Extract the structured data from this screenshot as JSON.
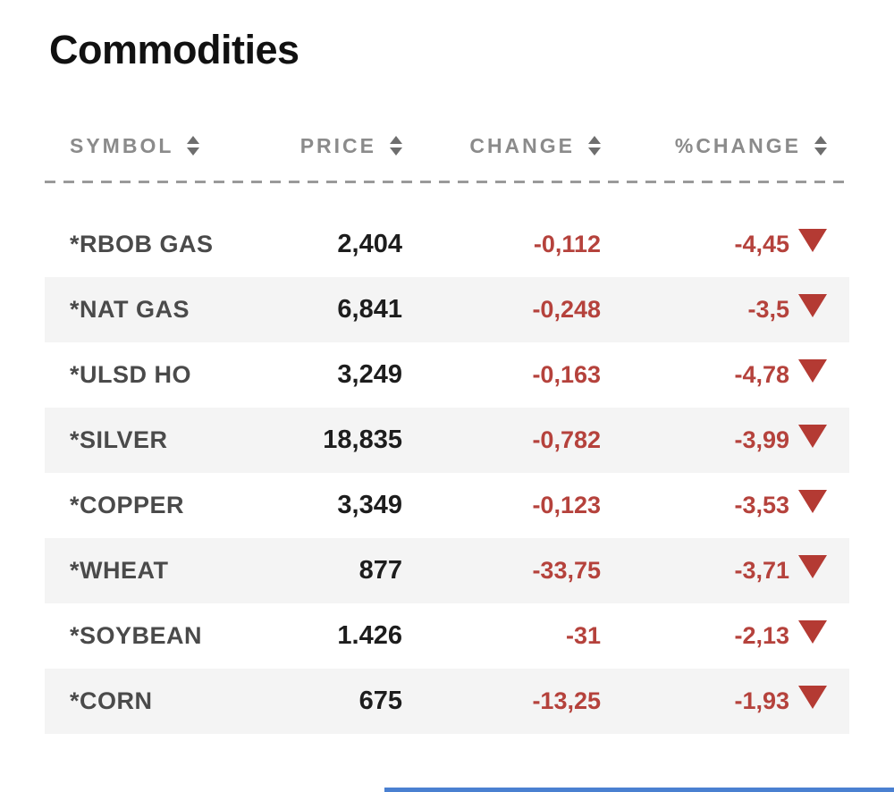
{
  "title": "Commodities",
  "table": {
    "columns": [
      {
        "label": "SYMBOL",
        "sortable": true
      },
      {
        "label": "PRICE",
        "sortable": true
      },
      {
        "label": "CHANGE",
        "sortable": true
      },
      {
        "label": "%CHANGE",
        "sortable": true
      }
    ],
    "rows": [
      {
        "symbol": "*RBOB GAS",
        "price": "2,404",
        "change": "-0,112",
        "pct_change": "-4,45",
        "direction": "down"
      },
      {
        "symbol": "*NAT GAS",
        "price": "6,841",
        "change": "-0,248",
        "pct_change": "-3,5",
        "direction": "down"
      },
      {
        "symbol": "*ULSD HO",
        "price": "3,249",
        "change": "-0,163",
        "pct_change": "-4,78",
        "direction": "down"
      },
      {
        "symbol": "*SILVER",
        "price": "18,835",
        "change": "-0,782",
        "pct_change": "-3,99",
        "direction": "down"
      },
      {
        "symbol": "*COPPER",
        "price": "3,349",
        "change": "-0,123",
        "pct_change": "-3,53",
        "direction": "down"
      },
      {
        "symbol": "*WHEAT",
        "price": "877",
        "change": "-33,75",
        "pct_change": "-3,71",
        "direction": "down"
      },
      {
        "symbol": "*SOYBEAN",
        "price": "1.426",
        "change": "-31",
        "pct_change": "-2,13",
        "direction": "down"
      },
      {
        "symbol": "*CORN",
        "price": "675",
        "change": "-13,25",
        "pct_change": "-1,93",
        "direction": "down"
      }
    ]
  },
  "colors": {
    "title-color": "#111111",
    "header-text": "#8b8b8b",
    "sort-icon": "#6e6e6e",
    "divider": "#9a9a9a",
    "symbol-text": "#4a4a4a",
    "price-text": "#1d1d1d",
    "negative": "#b5423c",
    "triangle": "#b43a33",
    "row-alt-bg": "#f4f4f4",
    "bottom-bar": "#4a80d1"
  }
}
